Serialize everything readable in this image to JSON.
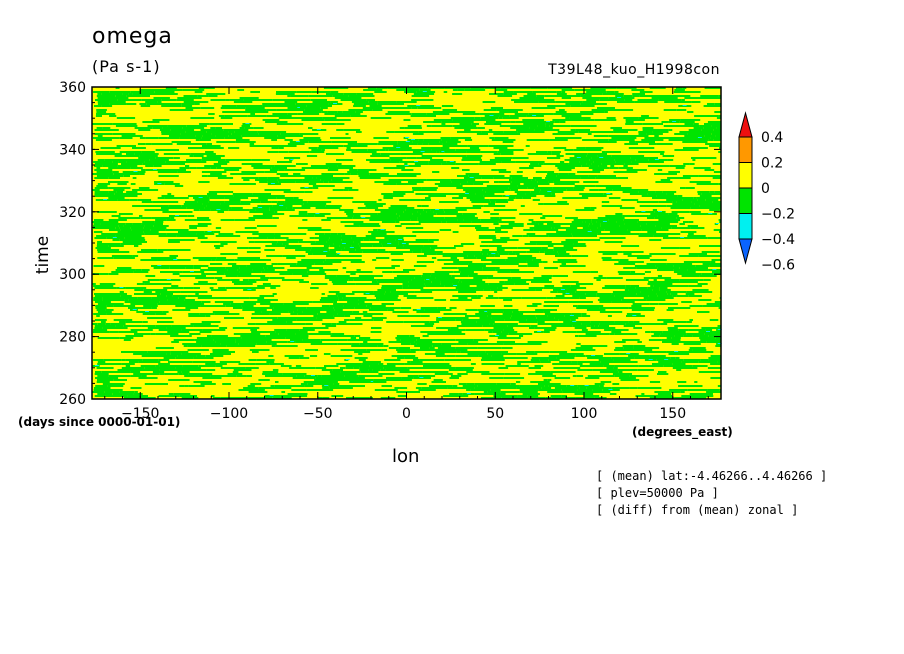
{
  "chart_data": {
    "type": "heatmap",
    "title": "omega",
    "units": "(Pa s-1)",
    "run_label": "T39L48_kuo_H1998con",
    "xlabel": "lon",
    "ylabel": "time",
    "x_units": "(degrees_east)",
    "y_units": "(days since 0000-01-01)",
    "xlim": [
      -177.1875,
      177.1875
    ],
    "ylim": [
      260,
      360
    ],
    "x_ticks": [
      -150,
      -100,
      -50,
      0,
      50,
      100,
      150
    ],
    "x_tick_labels": [
      "-150",
      "-100",
      "-50",
      "0",
      "50",
      "100",
      "150"
    ],
    "y_ticks": [
      260,
      280,
      300,
      320,
      340,
      360
    ],
    "y_tick_labels": [
      "260",
      "280",
      "300",
      "320",
      "340",
      "360"
    ],
    "grid": false,
    "legend": "right",
    "colorbar": {
      "levels": [
        -0.6,
        -0.4,
        -0.2,
        0,
        0.2,
        0.4
      ],
      "level_labels": [
        "−0.6",
        "−0.4",
        "−0.2",
        "0",
        "0.2",
        "0.4"
      ],
      "colors": [
        "#0a64ff",
        "#00f0f0",
        "#00e400",
        "#ffff00",
        "#ff9800",
        "#ee1010"
      ]
    },
    "field_description_colors": {
      "dominant_negative": "#00e400",
      "dominant_positive": "#ffff00",
      "rare_negative": "#00f0f0",
      "rare_positive": "#ff9800"
    }
  },
  "annotations": [
    "[ (mean) lat:-4.46266..4.46266 ]",
    "[ plev=50000 Pa ]",
    "[ (diff) from (mean) zonal ]"
  ]
}
